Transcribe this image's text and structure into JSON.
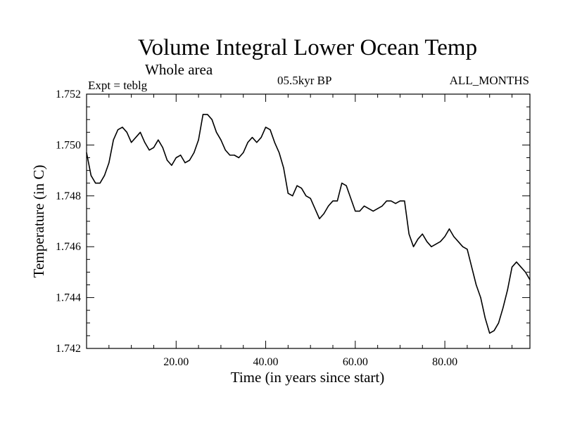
{
  "chart_data": {
    "type": "line",
    "title": "Volume Integral Lower Ocean Temp",
    "subtitle": "Whole area",
    "annotations": {
      "experiment": "Expt = teblg",
      "period": "05.5kyr BP",
      "months": "ALL_MONTHS"
    },
    "xlabel": "Time (in years since start)",
    "ylabel": "Temperature (in C)",
    "xlim": [
      0,
      99
    ],
    "ylim": [
      1.742,
      1.752
    ],
    "x_ticks": [
      {
        "value": 20,
        "label": "20.00"
      },
      {
        "value": 40,
        "label": "40.00"
      },
      {
        "value": 60,
        "label": "60.00"
      },
      {
        "value": 80,
        "label": "80.00"
      }
    ],
    "y_ticks": [
      {
        "value": 1.742,
        "label": "1.742"
      },
      {
        "value": 1.744,
        "label": "1.744"
      },
      {
        "value": 1.746,
        "label": "1.746"
      },
      {
        "value": 1.748,
        "label": "1.748"
      },
      {
        "value": 1.75,
        "label": "1.750"
      },
      {
        "value": 1.752,
        "label": "1.752"
      }
    ],
    "grid": false,
    "series": [
      {
        "name": "Volume integral lower ocean temperature",
        "color": "#000000",
        "x": [
          0,
          1,
          2,
          3,
          4,
          5,
          6,
          7,
          8,
          9,
          10,
          11,
          12,
          13,
          14,
          15,
          16,
          17,
          18,
          19,
          20,
          21,
          22,
          23,
          24,
          25,
          26,
          27,
          28,
          29,
          30,
          31,
          32,
          33,
          34,
          35,
          36,
          37,
          38,
          39,
          40,
          41,
          42,
          43,
          44,
          45,
          46,
          47,
          48,
          49,
          50,
          51,
          52,
          53,
          54,
          55,
          56,
          57,
          58,
          59,
          60,
          61,
          62,
          63,
          64,
          65,
          66,
          67,
          68,
          69,
          70,
          71,
          72,
          73,
          74,
          75,
          76,
          77,
          78,
          79,
          80,
          81,
          82,
          83,
          84,
          85,
          86,
          87,
          88,
          89,
          90,
          91,
          92,
          93,
          94,
          95,
          96,
          97,
          98,
          99
        ],
        "values": [
          1.7497,
          1.7488,
          1.7485,
          1.7485,
          1.7488,
          1.7493,
          1.7502,
          1.7506,
          1.7507,
          1.7505,
          1.7501,
          1.7503,
          1.7505,
          1.7501,
          1.7498,
          1.7499,
          1.7502,
          1.7499,
          1.7494,
          1.7492,
          1.7495,
          1.7496,
          1.7493,
          1.7494,
          1.7497,
          1.7502,
          1.7512,
          1.7512,
          1.751,
          1.7505,
          1.7502,
          1.7498,
          1.7496,
          1.7496,
          1.7495,
          1.7497,
          1.7501,
          1.7503,
          1.7501,
          1.7503,
          1.7507,
          1.7506,
          1.7501,
          1.7497,
          1.7491,
          1.7481,
          1.748,
          1.7484,
          1.7483,
          1.748,
          1.7479,
          1.7475,
          1.7471,
          1.7473,
          1.7476,
          1.7478,
          1.7478,
          1.7485,
          1.7484,
          1.7479,
          1.7474,
          1.7474,
          1.7476,
          1.7475,
          1.7474,
          1.7475,
          1.7476,
          1.7478,
          1.7478,
          1.7477,
          1.7478,
          1.7478,
          1.7465,
          1.746,
          1.7463,
          1.7465,
          1.7462,
          1.746,
          1.7461,
          1.7462,
          1.7464,
          1.7467,
          1.7464,
          1.7462,
          1.746,
          1.7459,
          1.7452,
          1.7445,
          1.744,
          1.7432,
          1.7426,
          1.7427,
          1.743,
          1.7436,
          1.7443,
          1.7452,
          1.7454,
          1.7452,
          1.745,
          1.7447
        ]
      }
    ]
  }
}
